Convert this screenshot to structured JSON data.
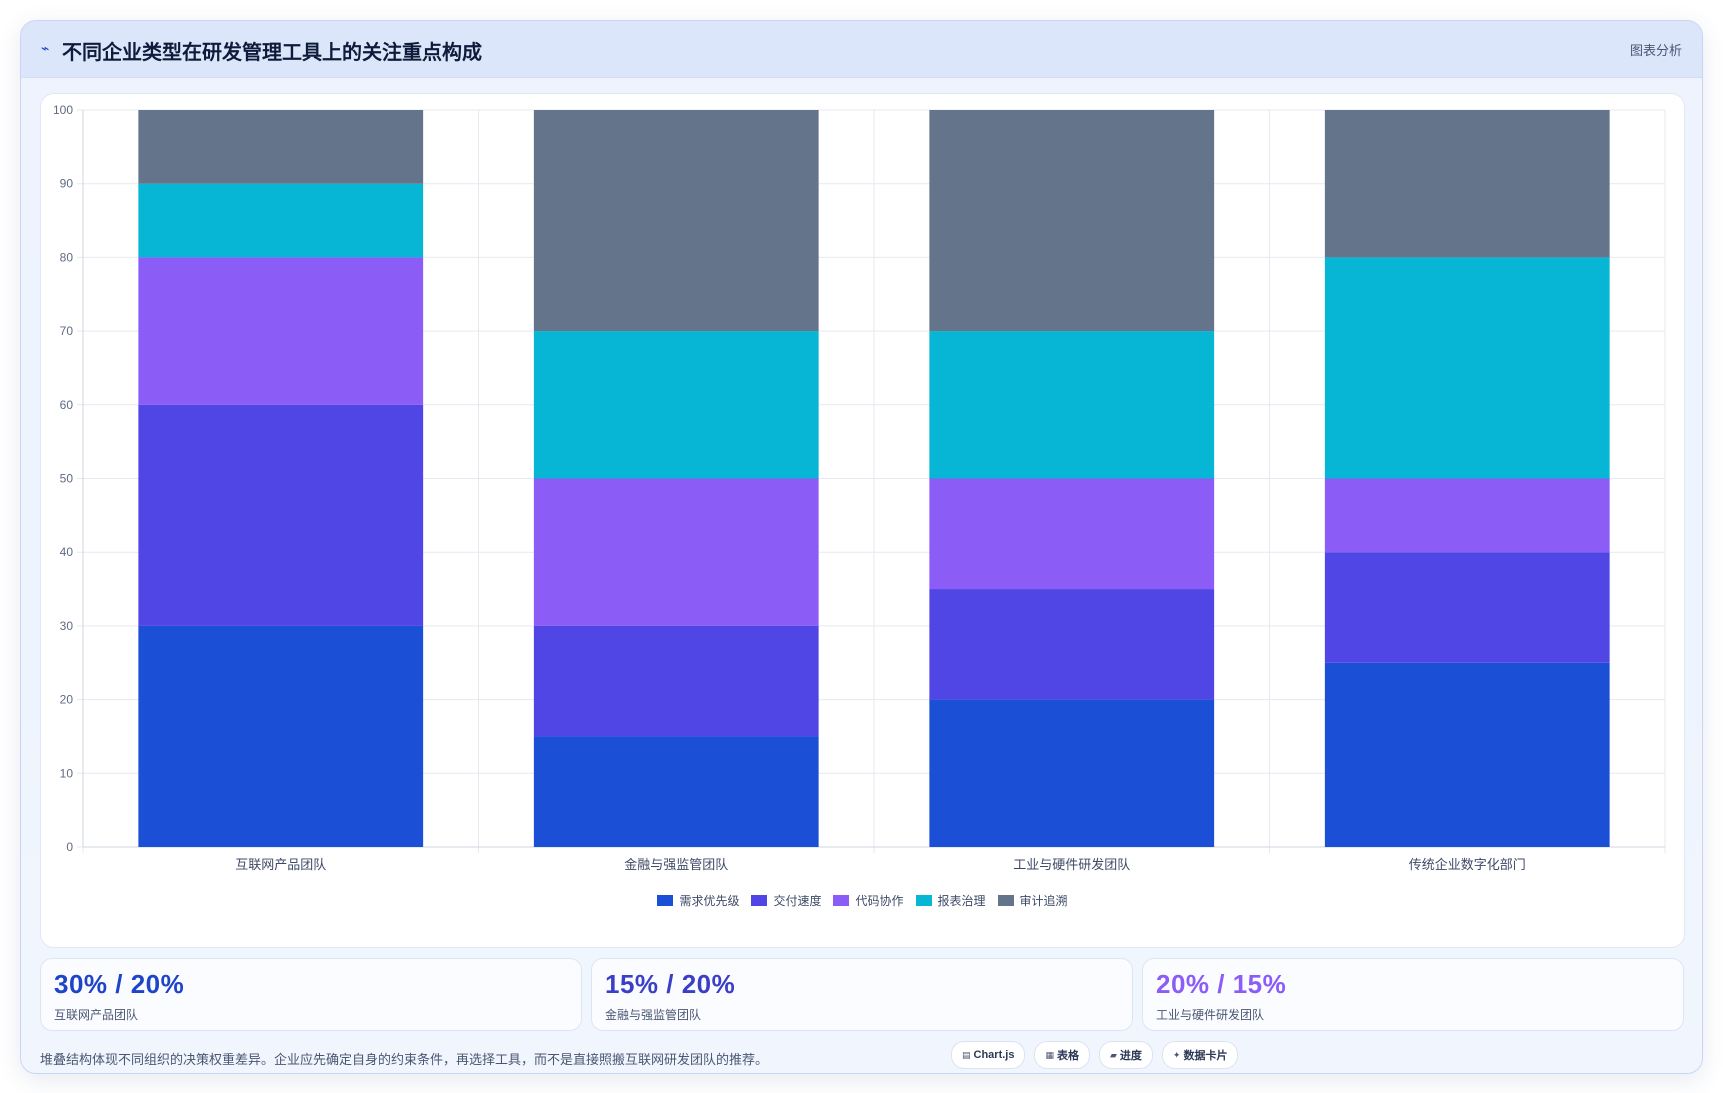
{
  "header": {
    "icon": "trend-icon",
    "icon_glyph": "⌁",
    "title": "不同企业类型在研发管理工具上的关注重点构成",
    "action_label": "图表分析"
  },
  "chart_data": {
    "type": "bar",
    "stacked": true,
    "categories": [
      "互联网产品团队",
      "金融与强监管团队",
      "工业与硬件研发团队",
      "传统企业数字化部门"
    ],
    "series": [
      {
        "name": "需求优先级",
        "color": "#1b4fd6",
        "values": [
          30,
          15,
          20,
          25
        ]
      },
      {
        "name": "交付速度",
        "color": "#4f46e5",
        "values": [
          30,
          15,
          15,
          15
        ]
      },
      {
        "name": "代码协作",
        "color": "#8b5cf6",
        "values": [
          20,
          20,
          15,
          10
        ]
      },
      {
        "name": "报表治理",
        "color": "#06b6d4",
        "values": [
          10,
          20,
          20,
          30
        ]
      },
      {
        "name": "审计追溯",
        "color": "#64748b",
        "values": [
          10,
          30,
          30,
          20
        ]
      }
    ],
    "ylim": [
      0,
      100
    ],
    "yticks": [
      0,
      10,
      20,
      30,
      40,
      50,
      60,
      70,
      80,
      90,
      100
    ],
    "grid": true,
    "legend_position": "bottom"
  },
  "stats": [
    {
      "value": "30% / 20%",
      "label": "互联网产品团队",
      "color": "#1d44c9"
    },
    {
      "value": "15% / 20%",
      "label": "金融与强监管团队",
      "color": "#3b3fc7"
    },
    {
      "value": "20% / 15%",
      "label": "工业与硬件研发团队",
      "color": "#8b5cf6"
    }
  ],
  "footnote": "堆叠结构体现不同组织的决策权重差异。企业应先确定自身的约束条件，再选择工具，而不是直接照搬互联网研发团队的推荐。",
  "chips": [
    {
      "icon": "chart-icon",
      "glyph": "▤",
      "label": "Chart.js"
    },
    {
      "icon": "table-icon",
      "glyph": "▦",
      "label": "表格"
    },
    {
      "icon": "progress-icon",
      "glyph": "▰",
      "label": "进度"
    },
    {
      "icon": "sparkle-icon",
      "glyph": "✦",
      "label": "数据卡片"
    }
  ]
}
